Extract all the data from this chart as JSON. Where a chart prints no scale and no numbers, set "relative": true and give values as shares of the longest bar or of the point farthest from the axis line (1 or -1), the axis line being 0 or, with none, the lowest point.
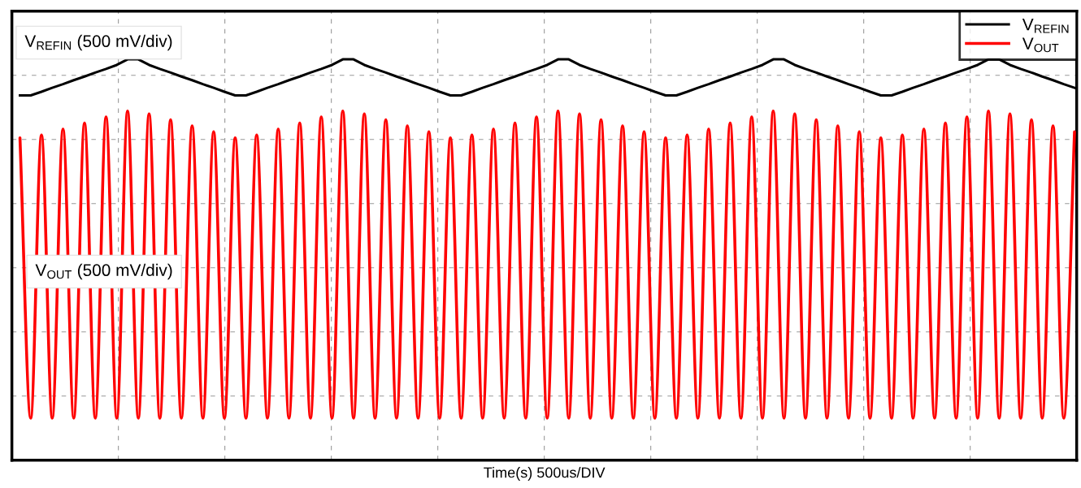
{
  "chart_data": {
    "type": "line",
    "relative": true,
    "xlabel": "Time(s) 500us/DIV",
    "annotations": [
      "V$_{REFIN}$ (500 mV/div)",
      "V$_{OUT}$ (500 mV/div)"
    ],
    "categories": [
      null,
      null,
      null,
      null,
      null,
      null,
      null,
      null,
      null,
      null,
      null,
      null,
      null,
      null,
      null,
      null,
      null,
      null,
      null,
      null,
      null,
      null,
      null,
      null,
      null,
      null,
      null,
      null,
      null,
      null,
      null,
      null,
      null,
      null,
      null,
      null,
      null,
      null,
      null,
      null,
      null,
      null,
      null,
      null,
      null,
      null,
      null,
      null,
      null,
      null,
      null,
      null,
      null,
      null,
      null,
      null,
      null,
      null,
      null,
      null,
      null,
      null,
      null,
      null,
      null,
      null,
      null,
      null,
      null,
      null,
      null,
      null,
      null,
      null,
      null,
      null,
      null,
      null,
      null,
      null,
      null,
      null,
      null,
      null,
      null,
      null,
      null,
      null,
      null,
      null,
      null,
      null,
      null,
      null,
      null,
      null,
      null,
      null,
      null
    ],
    "series": [
      {
        "name": "V$_{REFIN}$",
        "color": "#000000",
        "values": [
          0.91,
          0.91,
          0.919,
          0.929,
          0.938,
          0.948,
          0.957,
          0.967,
          0.976,
          0.986,
          1.0,
          1.0,
          0.986,
          0.976,
          0.967,
          0.957,
          0.948,
          0.938,
          0.929,
          0.919,
          0.91,
          0.91,
          0.919,
          0.929,
          0.938,
          0.948,
          0.957,
          0.967,
          0.976,
          0.986,
          1.0,
          1.0,
          0.986,
          0.976,
          0.967,
          0.957,
          0.948,
          0.938,
          0.929,
          0.919,
          0.91,
          0.91,
          0.919,
          0.929,
          0.938,
          0.948,
          0.957,
          0.967,
          0.976,
          0.986,
          1.0,
          1.0,
          0.986,
          0.976,
          0.967,
          0.957,
          0.948,
          0.938,
          0.929,
          0.919,
          0.91,
          0.91,
          0.919,
          0.929,
          0.938,
          0.948,
          0.957,
          0.967,
          0.976,
          0.986,
          1.0,
          1.0,
          0.986,
          0.976,
          0.967,
          0.957,
          0.948,
          0.938,
          0.929,
          0.919,
          0.91,
          0.91,
          0.919,
          0.929,
          0.938,
          0.948,
          0.957,
          0.967,
          0.976,
          0.986,
          1.0,
          1.0,
          0.986,
          0.976,
          0.967,
          0.957,
          0.948,
          0.938,
          0.929
        ]
      },
      {
        "name": "V$_{OUT}$",
        "color": "#ff0000",
        "values": [
          0.804,
          0.105,
          0.811,
          0.105,
          0.826,
          0.105,
          0.841,
          0.105,
          0.856,
          0.105,
          0.871,
          0.105,
          0.864,
          0.105,
          0.849,
          0.105,
          0.834,
          0.105,
          0.819,
          0.105,
          0.804,
          0.105,
          0.811,
          0.105,
          0.826,
          0.105,
          0.841,
          0.105,
          0.856,
          0.105,
          0.871,
          0.105,
          0.864,
          0.105,
          0.849,
          0.105,
          0.834,
          0.105,
          0.819,
          0.105,
          0.804,
          0.105,
          0.811,
          0.105,
          0.826,
          0.105,
          0.841,
          0.105,
          0.856,
          0.105,
          0.871,
          0.105,
          0.864,
          0.105,
          0.849,
          0.105,
          0.834,
          0.105,
          0.819,
          0.105,
          0.804,
          0.105,
          0.811,
          0.105,
          0.826,
          0.105,
          0.841,
          0.105,
          0.856,
          0.105,
          0.871,
          0.105,
          0.864,
          0.105,
          0.849,
          0.105,
          0.834,
          0.105,
          0.819,
          0.105,
          0.804,
          0.105,
          0.811,
          0.105,
          0.826,
          0.105,
          0.841,
          0.105,
          0.856,
          0.105,
          0.871,
          0.105,
          0.864,
          0.105,
          0.849,
          0.105,
          0.834,
          0.105,
          0.819
        ]
      }
    ],
    "grid": true,
    "legend": "top right",
    "marker": "none",
    "line_style": "solid"
  }
}
